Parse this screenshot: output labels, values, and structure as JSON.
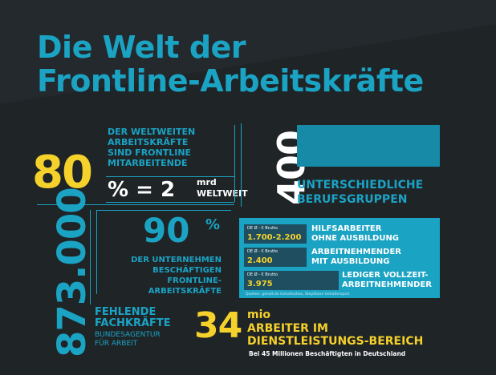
{
  "title": {
    "line1": "Die Welt der",
    "line2": "Frontline-Arbeitskräfte"
  },
  "stat80": {
    "number": "80",
    "text_lines": [
      "DER WELTWEITEN",
      "ARBEITSKRÄFTE",
      "SIND FRONTLINE",
      "MITARBEITENDE"
    ],
    "eq": "% = 2",
    "unit": "mrd",
    "weltweit": "WELTWEIT"
  },
  "stat400": {
    "number": "400",
    "text_lines": [
      "UNTERSCHIEDLICHE",
      "BERUFSGRUPPEN"
    ]
  },
  "stat873": {
    "number": "873.000",
    "text_lines": [
      "FEHLENDE",
      "FACHKRÄFTE"
    ],
    "sub_lines": [
      "BUNDESAGENTUR",
      "FÜR ARBEIT"
    ]
  },
  "stat90": {
    "number": "90",
    "pct": "%",
    "text_lines": [
      "DER UNTERNEHMEN",
      "BESCHÄFTIGEN",
      "FRONTLINE-",
      "ARBEITSKRÄFTE"
    ]
  },
  "salaries": {
    "items": [
      {
        "label": "DE Ø - € Brutto",
        "value": "1.700-2.200",
        "desc_lines": [
          "HILFSARBEITER",
          "OHNE AUSBILDUNG"
        ]
      },
      {
        "label": "DE Ø - € Brutto",
        "value": "2.400",
        "desc_lines": [
          "ARBEITNEHMENDER",
          "MIT AUSBILDUNG"
        ]
      },
      {
        "label": "DE Ø - € Brutto",
        "value": "3.975",
        "desc_lines": [
          "LEDIGER VOLLZEIT-",
          "ARBEITNEHMENDER"
        ]
      }
    ],
    "source": "Quellen: gehalt.de Gehaltsatlas, StepStone Gehaltsreport"
  },
  "stat34": {
    "number": "34",
    "unit": "mio",
    "text_lines": [
      "ARBEITER IM",
      "DIENSTLEISTUNGS-BEREICH"
    ],
    "sub": "Bei 45 Millionen Beschäftigten in Deutschland"
  },
  "colors": {
    "background": "#1f2427",
    "accent_blue": "#1ba3c4",
    "accent_yellow": "#f5d12b",
    "panel_dark": "#1e4e60"
  }
}
